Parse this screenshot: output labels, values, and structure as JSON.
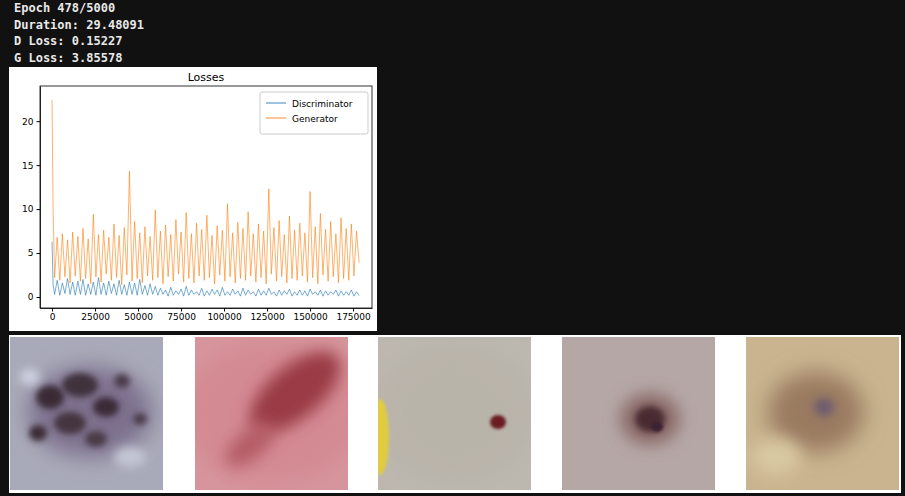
{
  "header": {
    "lines": [
      "Epoch 478/5000",
      "Duration: 29.48091",
      "D Loss: 0.15227",
      "G Loss: 3.85578"
    ]
  },
  "chart_data": {
    "type": "line",
    "title": "Losses",
    "x": [
      0,
      600,
      1500,
      3000,
      4500,
      6000,
      7500,
      9000,
      10500,
      12000,
      13500,
      15000,
      16500,
      18000,
      19500,
      21000,
      22500,
      24000,
      25500,
      27000,
      28500,
      30000,
      31500,
      33000,
      34500,
      36000,
      37500,
      39000,
      40500,
      42000,
      43500,
      45000,
      46500,
      48000,
      49500,
      51000,
      52500,
      54000,
      55500,
      57000,
      58500,
      60000,
      61500,
      63000,
      64500,
      66000,
      67500,
      69000,
      70500,
      72000,
      73500,
      75000,
      76500,
      78000,
      79500,
      81000,
      82500,
      84000,
      85500,
      87000,
      88500,
      90000,
      91500,
      93000,
      94500,
      96000,
      97500,
      99000,
      100500,
      102000,
      103500,
      105000,
      106500,
      108000,
      109500,
      111000,
      112500,
      114000,
      115500,
      117000,
      118500,
      120000,
      121500,
      123000,
      124500,
      126000,
      127500,
      129000,
      130500,
      132000,
      133500,
      135000,
      136500,
      138000,
      139500,
      141000,
      142500,
      144000,
      145500,
      147000,
      148500,
      150000,
      151500,
      153000,
      154500,
      156000,
      157500,
      159000,
      160500,
      162000,
      163500,
      165000,
      166500,
      168000,
      169500,
      171000,
      172500,
      174000,
      175500,
      177000,
      178500
    ],
    "xlim": [
      -7000,
      186000
    ],
    "xticks": [
      0,
      25000,
      50000,
      75000,
      100000,
      125000,
      150000,
      175000
    ],
    "ylim": [
      -1.25,
      24
    ],
    "yticks": [
      0,
      5,
      10,
      15,
      20
    ],
    "grid": false,
    "legend": "upper right",
    "series": [
      {
        "name": "Discriminator",
        "color": "#1f77b4",
        "values": [
          6.3,
          1.4,
          0.3,
          1.9,
          0.2,
          1.6,
          0.4,
          2.1,
          0.3,
          1.7,
          0.2,
          1.8,
          0.3,
          2.0,
          0.2,
          1.5,
          0.3,
          1.7,
          0.2,
          2.2,
          0.3,
          1.6,
          0.2,
          1.8,
          0.4,
          1.5,
          0.2,
          1.9,
          0.3,
          1.4,
          0.2,
          1.7,
          0.3,
          1.6,
          0.2,
          2.0,
          0.3,
          1.3,
          0.2,
          1.5,
          0.3,
          1.2,
          0.2,
          1.0,
          0.3,
          0.8,
          0.1,
          1.1,
          0.2,
          0.7,
          0.3,
          0.9,
          0.1,
          1.2,
          0.2,
          0.8,
          0.3,
          0.6,
          0.2,
          1.0,
          0.1,
          0.7,
          0.2,
          0.9,
          0.3,
          0.8,
          0.1,
          1.1,
          0.2,
          0.6,
          0.2,
          0.9,
          0.3,
          0.7,
          0.1,
          1.0,
          0.2,
          0.8,
          0.3,
          0.6,
          0.1,
          0.9,
          0.2,
          0.7,
          0.2,
          1.0,
          0.3,
          0.6,
          0.1,
          0.8,
          0.2,
          0.7,
          0.3,
          0.9,
          0.1,
          0.6,
          0.2,
          0.8,
          0.2,
          0.7,
          0.1,
          0.9,
          0.3,
          0.6,
          0.2,
          0.8,
          0.1,
          0.7,
          0.2,
          0.6,
          0.3,
          0.8,
          0.1,
          0.7,
          0.2,
          0.6,
          0.2,
          0.8,
          0.1,
          0.6,
          0.15
        ]
      },
      {
        "name": "Generator",
        "color": "#ff7f0e",
        "values": [
          22.4,
          10.1,
          2.2,
          6.8,
          1.9,
          7.2,
          2.3,
          6.5,
          1.6,
          7.4,
          2.4,
          6.9,
          1.8,
          7.8,
          2.1,
          6.6,
          1.5,
          9.4,
          2.3,
          7.1,
          1.7,
          7.6,
          2.6,
          6.8,
          1.9,
          8.3,
          2.2,
          7.0,
          1.4,
          7.9,
          2.5,
          14.3,
          1.8,
          8.6,
          2.1,
          7.3,
          1.6,
          8.0,
          2.4,
          6.9,
          1.9,
          9.9,
          2.2,
          7.5,
          1.5,
          8.2,
          2.3,
          7.1,
          1.8,
          8.8,
          2.6,
          7.4,
          1.7,
          9.6,
          2.1,
          7.2,
          1.6,
          8.4,
          2.4,
          7.7,
          1.9,
          9.3,
          2.2,
          7.0,
          1.5,
          8.1,
          2.5,
          7.6,
          1.8,
          10.6,
          2.3,
          7.3,
          1.6,
          8.5,
          2.1,
          7.8,
          1.9,
          9.7,
          2.4,
          7.2,
          1.7,
          8.3,
          2.2,
          7.5,
          1.5,
          12.3,
          2.6,
          7.9,
          1.8,
          8.7,
          2.3,
          7.1,
          1.6,
          9.2,
          2.1,
          7.6,
          1.9,
          8.4,
          2.4,
          7.3,
          1.7,
          12.0,
          2.2,
          8.0,
          1.5,
          9.5,
          2.5,
          7.7,
          1.8,
          8.6,
          2.3,
          7.2,
          1.6,
          9.0,
          2.1,
          7.8,
          1.9,
          8.3,
          2.4,
          7.5,
          3.9
        ]
      }
    ]
  }
}
